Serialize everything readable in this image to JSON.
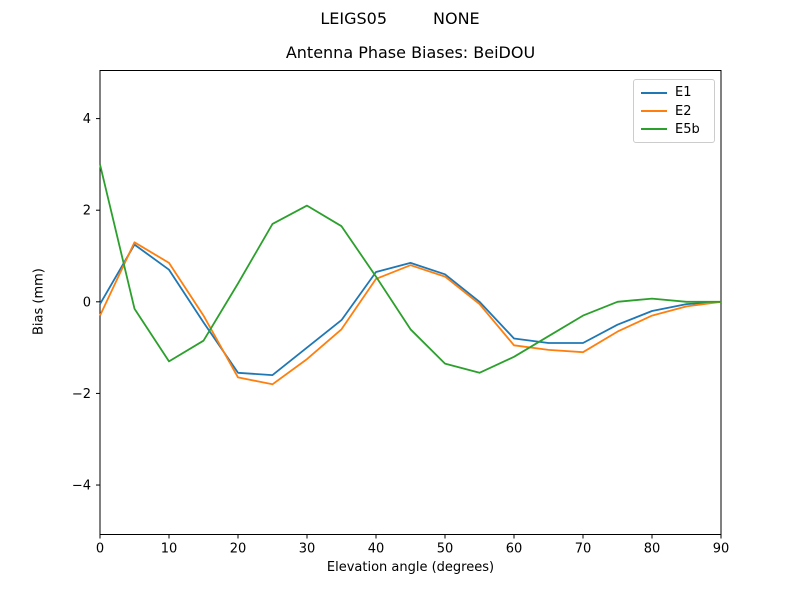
{
  "figure": {
    "suptitle_left": "LEIGS05",
    "suptitle_right": "NONE",
    "axes_title": "Antenna Phase Biases: BeiDOU"
  },
  "chart_data": {
    "type": "line",
    "title": "Antenna Phase Biases: BeiDOU",
    "xlabel": "Elevation angle (degrees)",
    "ylabel": "Bias (mm)",
    "xlim": [
      0,
      90
    ],
    "ylim": [
      -5.08,
      5.05
    ],
    "xticks": [
      0,
      10,
      20,
      30,
      40,
      50,
      60,
      70,
      80,
      90
    ],
    "yticks": [
      -4,
      -2,
      0,
      2,
      4
    ],
    "grid": false,
    "legend_position": "upper right",
    "x": [
      0,
      5,
      10,
      15,
      20,
      25,
      30,
      35,
      40,
      45,
      50,
      55,
      60,
      65,
      70,
      75,
      80,
      85,
      90
    ],
    "series": [
      {
        "name": "E1",
        "color": "#1f77b4",
        "values": [
          -0.05,
          1.25,
          0.7,
          -0.45,
          -1.55,
          -1.6,
          -1.0,
          -0.4,
          0.65,
          0.85,
          0.6,
          0.0,
          -0.8,
          -0.9,
          -0.9,
          -0.5,
          -0.2,
          -0.05,
          0.0
        ]
      },
      {
        "name": "E2",
        "color": "#ff7f0e",
        "values": [
          -0.3,
          1.3,
          0.85,
          -0.3,
          -1.65,
          -1.8,
          -1.25,
          -0.6,
          0.5,
          0.8,
          0.55,
          -0.05,
          -0.95,
          -1.05,
          -1.1,
          -0.65,
          -0.3,
          -0.1,
          0.0
        ]
      },
      {
        "name": "E5b",
        "color": "#2ca02c",
        "values": [
          3.0,
          -0.15,
          -1.3,
          -0.85,
          0.4,
          1.7,
          2.1,
          1.65,
          0.55,
          -0.6,
          -1.35,
          -1.55,
          -1.2,
          -0.75,
          -0.3,
          0.0,
          0.07,
          0.0,
          0.0
        ]
      }
    ]
  }
}
